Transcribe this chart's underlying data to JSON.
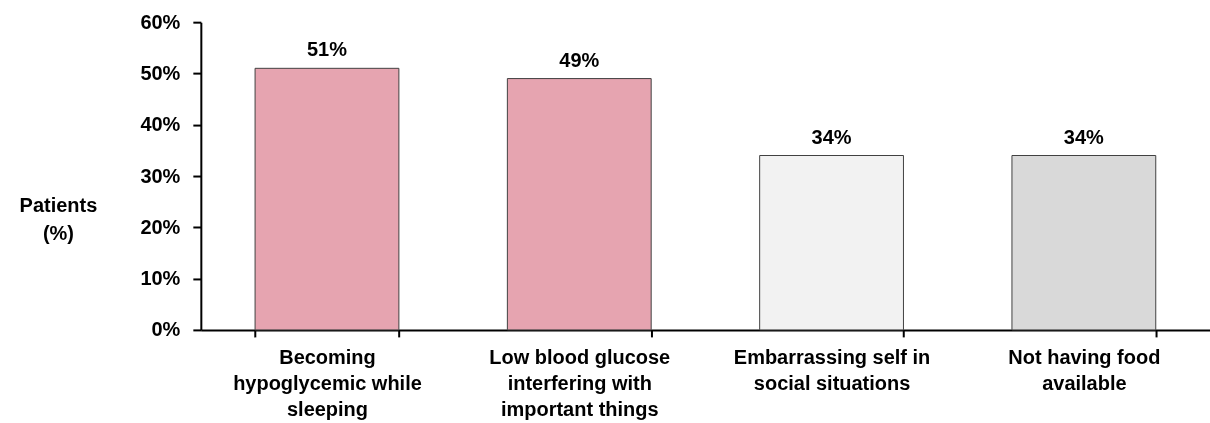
{
  "chart_data": {
    "type": "bar",
    "ylabel": "Patients (%)",
    "categories": [
      "Becoming hypoglycemic while sleeping",
      "Low blood glucose interfering with important things",
      "Embarrassing self in social situations",
      "Not having food available"
    ],
    "values": [
      51,
      49,
      34,
      34
    ],
    "colors": [
      "#e6a4b0",
      "#e6a4b0",
      "#f2f2f2",
      "#d9d9d9"
    ],
    "value_labels": [
      "51%",
      "49%",
      "34%",
      "34%"
    ],
    "ylim": [
      0,
      60
    ],
    "yticks": [
      {
        "value": 0,
        "label": "0%"
      },
      {
        "value": 10,
        "label": "10%"
      },
      {
        "value": 20,
        "label": "20%"
      },
      {
        "value": 30,
        "label": "30%"
      },
      {
        "value": 40,
        "label": "40%"
      },
      {
        "value": 50,
        "label": "50%"
      },
      {
        "value": 60,
        "label": "60%"
      }
    ],
    "grid": false
  }
}
